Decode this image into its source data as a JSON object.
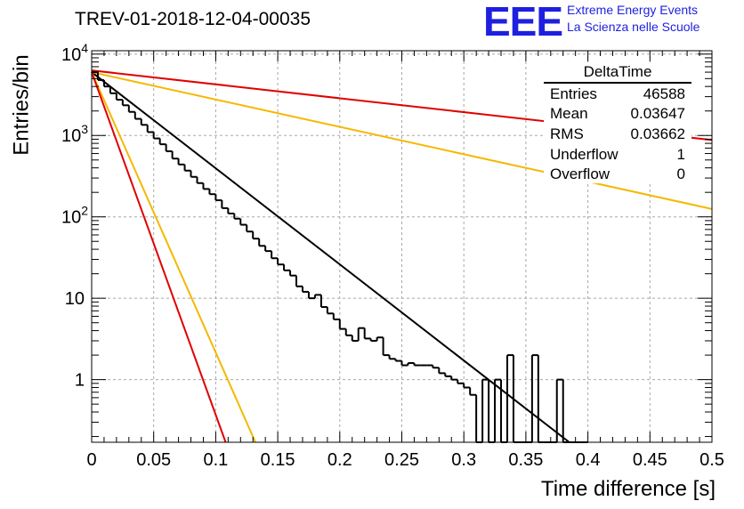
{
  "title": "TREV-01-2018-12-04-00035",
  "logo": {
    "mark": "EEE",
    "line1": "Extreme Energy Events",
    "line2": "La Scienza nelle Scuole",
    "color": "#1f1fe0"
  },
  "stats": {
    "title": "DeltaTime",
    "rows": [
      {
        "label": "Entries",
        "value": "46588"
      },
      {
        "label": "Mean",
        "value": "0.03647"
      },
      {
        "label": "RMS",
        "value": "0.03662"
      },
      {
        "label": "Underflow",
        "value": "1"
      },
      {
        "label": "Overflow",
        "value": "0"
      }
    ]
  },
  "chart_data": {
    "type": "line",
    "xlabel": "Time difference [s]",
    "ylabel": "Entries/bin",
    "xlim": [
      0,
      0.5
    ],
    "ylim": [
      0.17,
      11000
    ],
    "yscale": "log",
    "grid": true,
    "x_ticks": [
      "0",
      "0.05",
      "0.1",
      "0.15",
      "0.2",
      "0.25",
      "0.3",
      "0.35",
      "0.4",
      "0.45",
      "0.5"
    ],
    "y_ticks": [
      {
        "value": 1,
        "label": "1"
      },
      {
        "value": 10,
        "label": "10"
      },
      {
        "value": 100,
        "label": "10^2"
      },
      {
        "value": 1000,
        "label": "10^3"
      },
      {
        "value": 10000,
        "label": "10^4"
      }
    ],
    "histogram": {
      "bin_width": 0.005,
      "color": "#000000",
      "values": [
        6000,
        4800,
        4000,
        3300,
        2750,
        2350,
        1950,
        1600,
        1350,
        1100,
        920,
        780,
        640,
        520,
        440,
        370,
        310,
        260,
        220,
        190,
        160,
        128,
        110,
        95,
        80,
        66,
        54,
        44,
        38,
        31,
        26,
        22,
        19,
        14,
        12,
        10,
        11,
        7.8,
        6.5,
        5.5,
        4.2,
        3.5,
        3,
        4.3,
        3.2,
        3,
        3.3,
        2,
        1.8,
        1.7,
        1.5,
        1.6,
        1.5,
        1.5,
        1.5,
        1.4,
        1.2,
        1.1,
        1,
        0.9,
        0.8,
        0.65,
        0,
        1,
        0,
        1,
        0,
        2,
        0,
        0,
        0,
        2,
        0,
        0,
        0,
        1,
        0,
        0,
        0,
        0
      ]
    },
    "curves": [
      {
        "color": "#000000",
        "x": [
          0,
          0.385
        ],
        "y": [
          6000,
          0.17
        ]
      },
      {
        "color": "#e00000",
        "x": [
          0,
          0.5
        ],
        "y": [
          6300,
          880
        ]
      },
      {
        "color": "#f5b800",
        "x": [
          0,
          0.5
        ],
        "y": [
          6000,
          125
        ]
      },
      {
        "color": "#f5b800",
        "x": [
          0,
          0.132
        ],
        "y": [
          6000,
          0.17
        ]
      },
      {
        "color": "#e00000",
        "x": [
          0,
          0.108
        ],
        "y": [
          6000,
          0.17
        ]
      }
    ]
  }
}
